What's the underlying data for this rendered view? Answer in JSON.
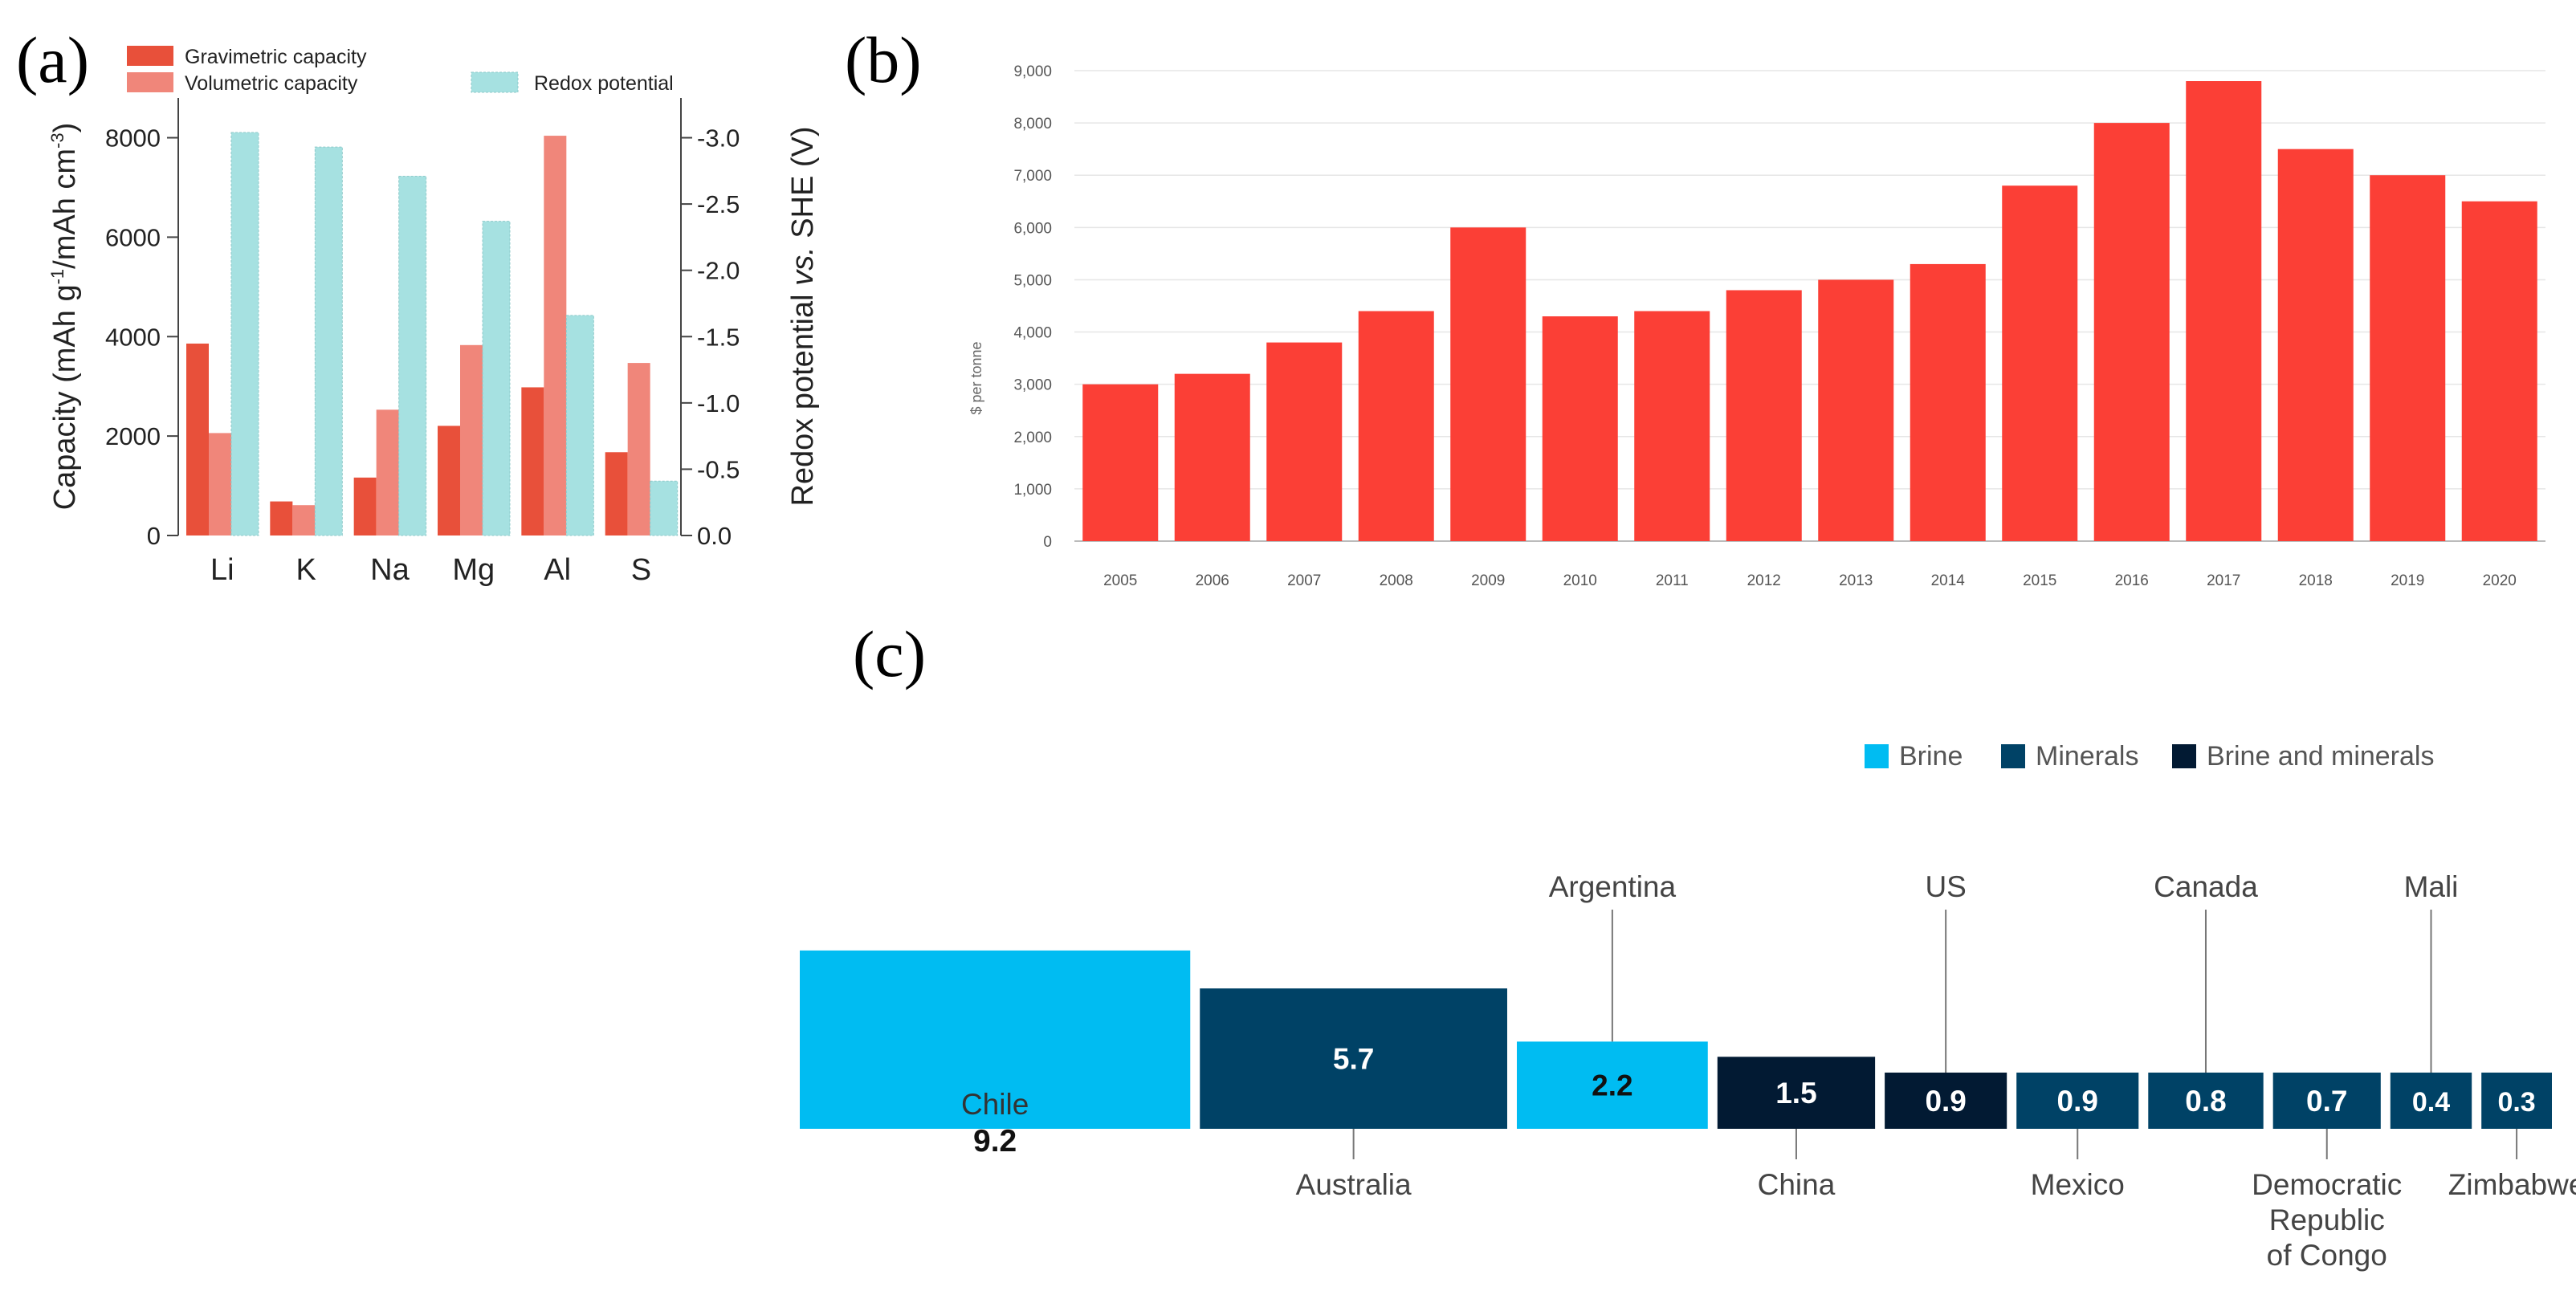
{
  "panels": {
    "a": {
      "label": "(a)"
    },
    "b": {
      "label": "(b)"
    },
    "c": {
      "label": "(c)"
    }
  },
  "colors": {
    "gravimetric": "#e8503a",
    "volumetric": "#f0867a",
    "redox": "#a6e1e1",
    "price_bar": "#fb3f36",
    "brine": "#00bcf2",
    "minerals": "#004266",
    "brine_and_minerals": "#021a33"
  },
  "chart_data": [
    {
      "id": "a",
      "type": "bar",
      "categories": [
        "Li",
        "K",
        "Na",
        "Mg",
        "Al",
        "S"
      ],
      "series": [
        {
          "name": "Gravimetric capacity",
          "axis": "left",
          "values": [
            3860,
            685,
            1165,
            2205,
            2980,
            1675
          ]
        },
        {
          "name": "Volumetric capacity",
          "axis": "left",
          "values": [
            2060,
            610,
            2530,
            3830,
            8040,
            3470
          ]
        },
        {
          "name": "Redox potential",
          "axis": "right",
          "values": [
            -3.04,
            -2.93,
            -2.71,
            -2.37,
            -1.66,
            -0.41
          ]
        }
      ],
      "ylabel": "Capacity (mAh g⁻¹/mAh cm⁻³)",
      "ylabel_parts": [
        "Capacity (mAh g",
        "-1",
        "/mAh cm",
        "-3",
        ")"
      ],
      "ylim": [
        0,
        8800
      ],
      "yticks": [
        "0",
        "2000",
        "4000",
        "6000",
        "8000"
      ],
      "ytick_values": [
        0,
        2000,
        4000,
        6000,
        8000
      ],
      "y2label": "Redox potential vs. SHE (V)",
      "y2label_parts": [
        "Redox potential ",
        "vs.",
        " SHE (V)"
      ],
      "y2lim": [
        0,
        -3.3
      ],
      "y2ticks": [
        "0.0",
        "-0.5",
        "-1.0",
        "-1.5",
        "-2.0",
        "-2.5",
        "-3.0"
      ],
      "y2tick_values": [
        0,
        -0.5,
        -1.0,
        -1.5,
        -2.0,
        -2.5,
        -3.0
      ],
      "legend": "top"
    },
    {
      "id": "b",
      "type": "bar",
      "categories": [
        "2005",
        "2006",
        "2007",
        "2008",
        "2009",
        "2010",
        "2011",
        "2012",
        "2013",
        "2014",
        "2015",
        "2016",
        "2017",
        "2018",
        "2019",
        "2020"
      ],
      "values": [
        3000,
        3200,
        3800,
        4400,
        6000,
        4300,
        4400,
        4800,
        5000,
        5300,
        6800,
        8000,
        8800,
        7500,
        7000,
        6500
      ],
      "ylabel": "$ per tonne",
      "ylim": [
        0,
        9000
      ],
      "yticks": [
        "0",
        "1,000",
        "2,000",
        "3,000",
        "4,000",
        "5,000",
        "6,000",
        "7,000",
        "8,000",
        "9,000"
      ],
      "ytick_values": [
        0,
        1000,
        2000,
        3000,
        4000,
        5000,
        6000,
        7000,
        8000,
        9000
      ],
      "grid": true
    },
    {
      "id": "c",
      "type": "bar",
      "legend": [
        {
          "label": "Brine",
          "key": "brine"
        },
        {
          "label": "Minerals",
          "key": "minerals"
        },
        {
          "label": "Brine and minerals",
          "key": "brine_and_minerals"
        }
      ],
      "items": [
        {
          "country": "Chile",
          "value": "9.2",
          "v": 9.2,
          "type": "brine",
          "label_pos": "inside"
        },
        {
          "country": "Australia",
          "value": "5.7",
          "v": 5.7,
          "type": "minerals",
          "label_pos": "below"
        },
        {
          "country": "Argentina",
          "value": "2.2",
          "v": 2.2,
          "type": "brine",
          "label_pos": "above"
        },
        {
          "country": "China",
          "value": "1.5",
          "v": 1.5,
          "type": "brine_and_minerals",
          "label_pos": "below"
        },
        {
          "country": "US",
          "value": "0.9",
          "v": 0.9,
          "type": "brine_and_minerals",
          "label_pos": "above"
        },
        {
          "country": "Mexico",
          "value": "0.9",
          "v": 0.9,
          "type": "minerals",
          "label_pos": "below"
        },
        {
          "country": "Canada",
          "value": "0.8",
          "v": 0.8,
          "type": "minerals",
          "label_pos": "above"
        },
        {
          "country": "Democratic Republic of Congo",
          "value": "0.7",
          "v": 0.7,
          "type": "minerals",
          "label_pos": "below",
          "label_lines": [
            "Democratic",
            "Republic",
            "of Congo"
          ]
        },
        {
          "country": "Mali",
          "value": "0.4",
          "v": 0.4,
          "type": "minerals",
          "label_pos": "above"
        },
        {
          "country": "Zimbabwe",
          "value": "0.3",
          "v": 0.3,
          "type": "minerals",
          "label_pos": "below"
        }
      ]
    }
  ]
}
